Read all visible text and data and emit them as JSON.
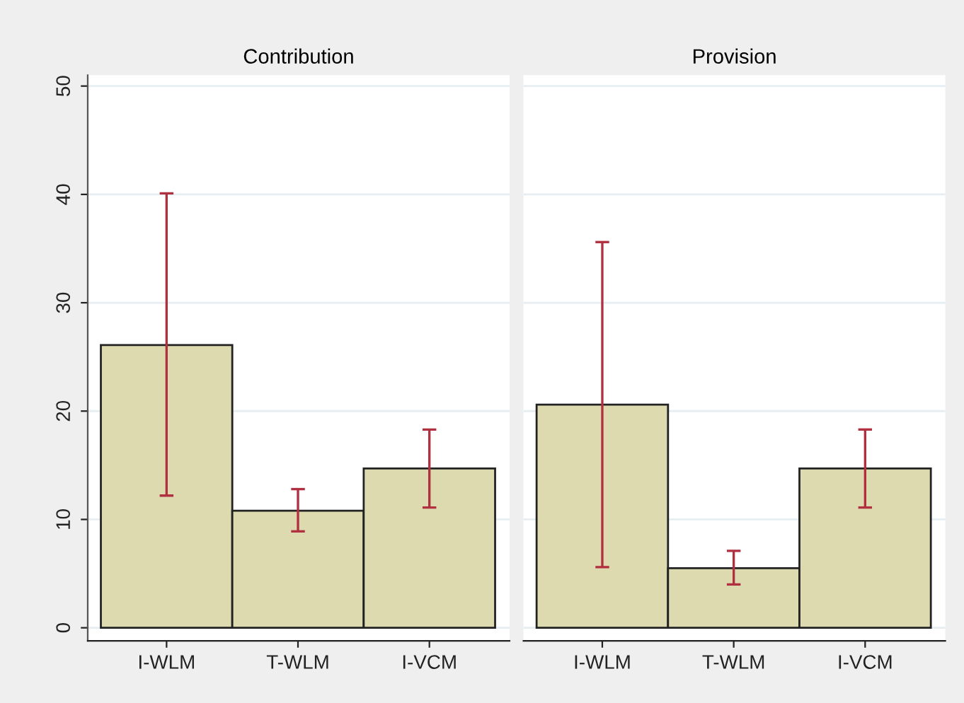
{
  "chart_data": [
    {
      "type": "bar",
      "title": "Contribution",
      "categories": [
        "I-WLM",
        "T-WLM",
        "I-VCM"
      ],
      "values": [
        26.1,
        10.8,
        14.7
      ],
      "errors": [
        [
          12.2,
          40.1
        ],
        [
          8.9,
          12.8
        ],
        [
          11.1,
          18.3
        ]
      ],
      "color": "#dddab0",
      "ylim": [
        -1.2,
        51
      ],
      "yticks": [
        0,
        10,
        20,
        30,
        40,
        50
      ],
      "grid": "y"
    },
    {
      "type": "bar",
      "title": "Provision",
      "categories": [
        "I-WLM",
        "T-WLM",
        "I-VCM"
      ],
      "values": [
        20.6,
        5.5,
        14.7
      ],
      "errors": [
        [
          5.6,
          35.6
        ],
        [
          4.0,
          7.1
        ],
        [
          11.1,
          18.3
        ]
      ],
      "color": "#dddab0",
      "ylim": [
        -1.2,
        51
      ],
      "yticks": [
        0,
        10,
        20,
        30,
        40,
        50
      ],
      "grid": "y",
      "tick_labels": "x"
    }
  ]
}
